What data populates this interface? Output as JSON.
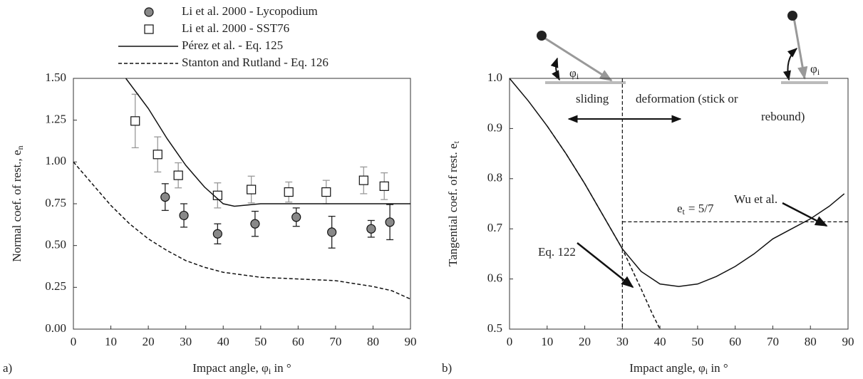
{
  "chart_data": [
    {
      "type": "scatter",
      "panel_label": "a)",
      "x_label": "Impact angle, φ",
      "x_label_sub": "i",
      "x_label_end": " in °",
      "y_label": "Normal coef. of rest., e",
      "y_label_sub": "n",
      "xlim": [
        0,
        90
      ],
      "xticks": [
        0,
        10,
        20,
        30,
        40,
        50,
        60,
        70,
        80,
        90
      ],
      "ylim": [
        0,
        1.5
      ],
      "yticks": [
        {
          "value": 0,
          "label": "0.00"
        },
        {
          "value": 0.25,
          "label": "0.25"
        },
        {
          "value": 0.5,
          "label": "0.50"
        },
        {
          "value": 0.75,
          "label": "0.75"
        },
        {
          "value": 1,
          "label": "1.00"
        },
        {
          "value": 1.25,
          "label": "1.25"
        },
        {
          "value": 1.5,
          "label": "1.50"
        }
      ],
      "legend": "top",
      "series": [
        {
          "name": "Li et al. 2000 - Lycopodium",
          "marker": "circle",
          "color": "#888888",
          "error_color": "#222222",
          "x": [
            24.5,
            29.5,
            38.5,
            48.5,
            59.5,
            69,
            79.5,
            84.5
          ],
          "values": [
            0.79,
            0.68,
            0.57,
            0.63,
            0.67,
            0.58,
            0.6,
            0.64
          ],
          "errors": [
            0.08,
            0.07,
            0.06,
            0.075,
            0.055,
            0.095,
            0.05,
            0.105
          ]
        },
        {
          "name": "Li et al. 2000 - SST76",
          "marker": "square",
          "color": "#ffffff",
          "error_color": "#999999",
          "x": [
            16.5,
            22.5,
            28,
            38.5,
            47.5,
            57.5,
            67.5,
            77.5,
            83
          ],
          "values": [
            1.245,
            1.045,
            0.92,
            0.8,
            0.835,
            0.82,
            0.82,
            0.89,
            0.855
          ],
          "errors": [
            0.16,
            0.105,
            0.075,
            0.075,
            0.08,
            0.06,
            0.07,
            0.08,
            0.08
          ]
        },
        {
          "name": "Pérez et al. - Eq. 125",
          "style": "solid",
          "color": "#111111",
          "x": [
            14,
            17,
            20,
            25,
            30,
            35,
            40,
            43,
            50,
            60,
            70,
            80,
            90
          ],
          "values": [
            1.5,
            1.41,
            1.32,
            1.14,
            0.98,
            0.85,
            0.75,
            0.735,
            0.75,
            0.75,
            0.75,
            0.75,
            0.75
          ]
        },
        {
          "name": "Stanton and Rutland - Eq. 126",
          "style": "dashed",
          "color": "#111111",
          "x": [
            0,
            5,
            10,
            15,
            20,
            25,
            30,
            35,
            40,
            50,
            60,
            70,
            80,
            85,
            90
          ],
          "values": [
            1.0,
            0.87,
            0.74,
            0.63,
            0.54,
            0.47,
            0.41,
            0.37,
            0.34,
            0.31,
            0.3,
            0.29,
            0.255,
            0.23,
            0.18
          ]
        }
      ]
    },
    {
      "type": "line",
      "panel_label": "b)",
      "x_label": "Impact angle, φ",
      "x_label_sub": "i",
      "x_label_end": " in °",
      "y_label": "Tangential coef. of rest. e",
      "y_label_sub": "t",
      "xlim": [
        0,
        90
      ],
      "xticks": [
        0,
        10,
        20,
        30,
        40,
        50,
        60,
        70,
        80,
        90
      ],
      "ylim": [
        0.5,
        1
      ],
      "yticks": [
        0.5,
        0.6,
        0.7,
        0.8,
        0.9,
        {
          "value": 1,
          "label": "1.0"
        }
      ],
      "legend": "none",
      "notes": [
        "sliding",
        "deformation (stick or",
        "rebound)"
      ],
      "icon_label": "φ",
      "icon_label_sub": "i",
      "ref_label": [
        "e",
        "t",
        "= 5/7"
      ],
      "reference_lines": [
        {
          "axis": "x",
          "value": 30
        },
        {
          "axis": "y",
          "value": 0.714,
          "from": 30
        }
      ],
      "series": [
        {
          "name": "Wu et al.",
          "style": "solid",
          "color": "#111111",
          "x": [
            0,
            5,
            10,
            15,
            20,
            25,
            30,
            35,
            40,
            45,
            50,
            55,
            60,
            65,
            70,
            75,
            80,
            85,
            89
          ],
          "values": [
            1.0,
            0.955,
            0.905,
            0.85,
            0.79,
            0.725,
            0.66,
            0.615,
            0.59,
            0.585,
            0.59,
            0.605,
            0.625,
            0.65,
            0.68,
            0.7,
            0.72,
            0.745,
            0.77
          ]
        },
        {
          "name": "Eq. 122",
          "style": "dashed",
          "color": "#111111",
          "x": [
            10,
            15,
            20,
            25,
            30,
            35,
            38,
            40
          ],
          "values": [
            0.905,
            0.85,
            0.79,
            0.725,
            0.66,
            0.58,
            0.53,
            0.5
          ]
        }
      ]
    }
  ]
}
